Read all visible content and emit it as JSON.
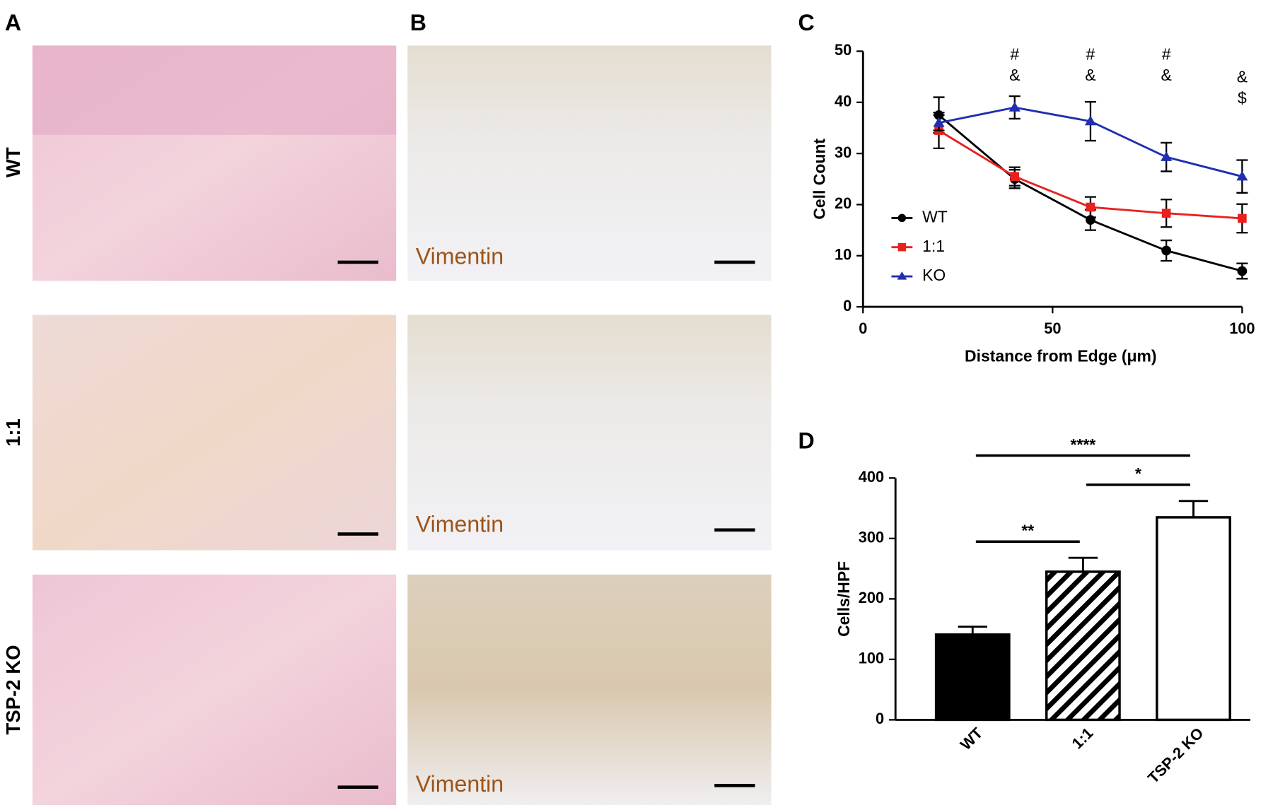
{
  "panel_labels": [
    "A",
    "B",
    "C",
    "D"
  ],
  "row_labels": [
    "WT",
    "1:1",
    "TSP-2 KO"
  ],
  "stain_labels": [
    "Vimentin",
    "Vimentin",
    "Vimentin"
  ],
  "chart_data": [
    {
      "type": "line",
      "xlabel": "Distance from Edge (μm)",
      "ylabel": "Cell Count",
      "x": [
        20,
        40,
        60,
        80,
        100
      ],
      "xlim": [
        0,
        100
      ],
      "xticks": [
        0,
        50,
        100
      ],
      "ylim": [
        0,
        50
      ],
      "yticks": [
        0,
        10,
        20,
        30,
        40,
        50
      ],
      "legend": "center left",
      "series": [
        {
          "name": "WT",
          "color": "#000000",
          "marker": "circle",
          "values": [
            37.5,
            25,
            17,
            11,
            7
          ],
          "errors": [
            3.5,
            1.8,
            2,
            2,
            1.5
          ]
        },
        {
          "name": "1:1",
          "color": "#e8211f",
          "marker": "square",
          "values": [
            34.5,
            25.5,
            19.5,
            18.3,
            17.3
          ],
          "errors": [
            3.5,
            1.8,
            2,
            2.7,
            2.8
          ]
        },
        {
          "name": "KO",
          "color": "#1f2fb0",
          "marker": "triangle",
          "values": [
            36,
            39,
            36.3,
            29.3,
            25.5
          ],
          "errors": [
            1.5,
            2.2,
            3.8,
            2.8,
            3.2
          ]
        }
      ],
      "annotations": [
        {
          "x": 40,
          "lines": [
            "#",
            "&"
          ]
        },
        {
          "x": 60,
          "lines": [
            "#",
            "&"
          ]
        },
        {
          "x": 80,
          "lines": [
            "#",
            "&"
          ]
        },
        {
          "x": 100,
          "lines": [
            "&",
            "$"
          ]
        }
      ]
    },
    {
      "type": "bar",
      "ylabel": "Cells/HPF",
      "categories": [
        "WT",
        "1:1",
        "TSP-2 KO"
      ],
      "values": [
        141,
        245,
        335
      ],
      "errors": [
        13,
        23,
        27
      ],
      "colors": [
        "#000000",
        "#ffffff",
        "#ffffff"
      ],
      "hatch": [
        false,
        true,
        false
      ],
      "ylim": [
        0,
        400
      ],
      "yticks": [
        0,
        100,
        200,
        300,
        400
      ],
      "significance": [
        {
          "from": 0,
          "to": 1,
          "label": "**"
        },
        {
          "from": 1,
          "to": 2,
          "label": "*"
        },
        {
          "from": 0,
          "to": 2,
          "label": "****"
        }
      ]
    }
  ]
}
